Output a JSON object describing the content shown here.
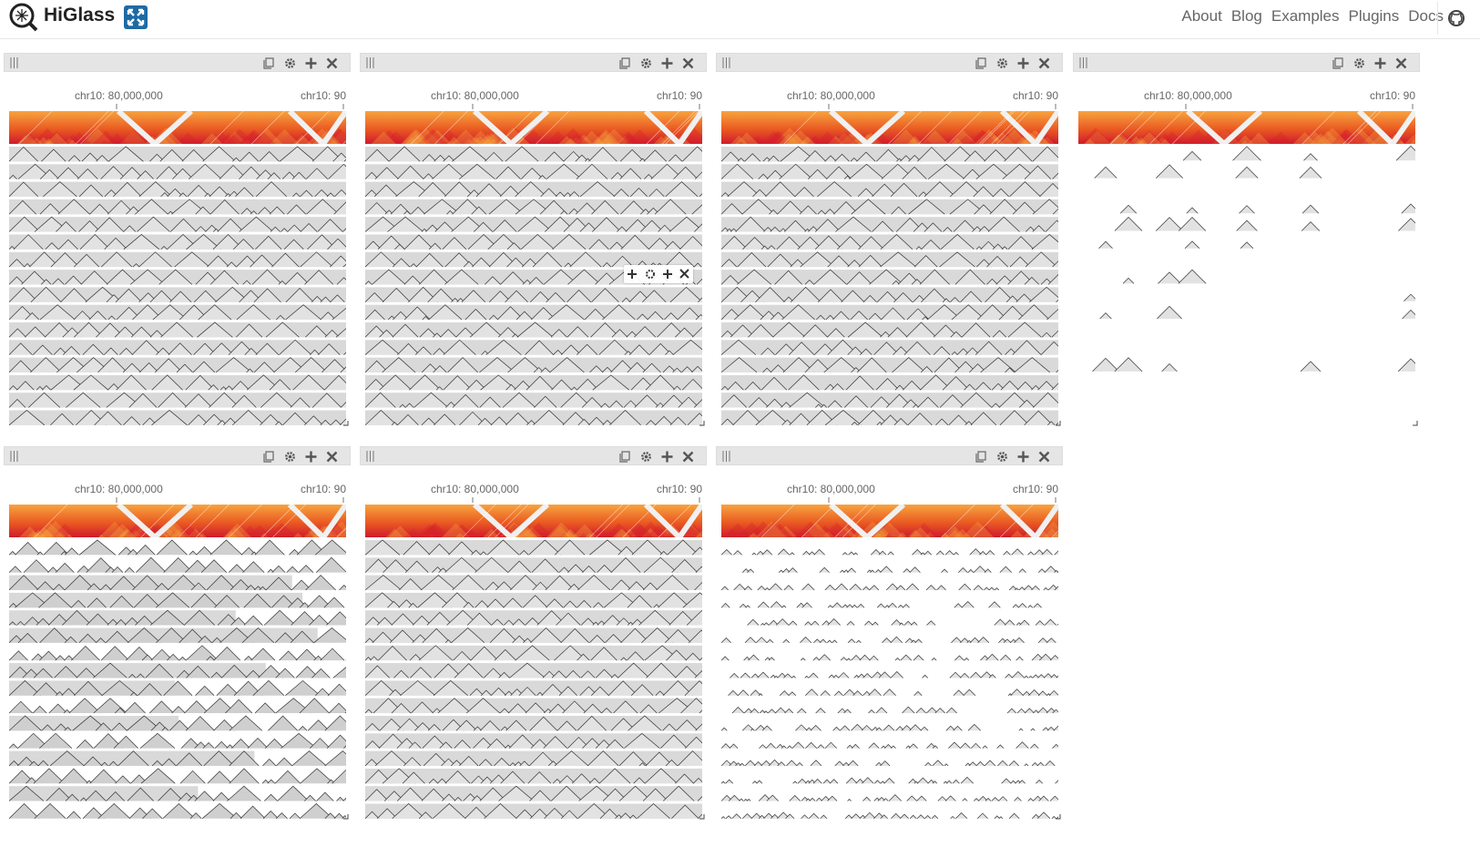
{
  "app": {
    "brand": "HiGlass"
  },
  "nav": {
    "items": [
      {
        "label": "About"
      },
      {
        "label": "Blog"
      },
      {
        "label": "Examples"
      },
      {
        "label": "Plugins"
      },
      {
        "label": "Docs"
      }
    ]
  },
  "icons": {
    "logo": "higlass-logo-icon",
    "expand": "fullscreen-icon",
    "github": "github-icon",
    "drag": "drag-handle-icon",
    "copy": "copy-icon",
    "config": "gear-icon",
    "add": "plus-icon",
    "close": "close-icon"
  },
  "colors": {
    "header": "#e5e5e5",
    "accent": "#1d6aa5",
    "heatHigh": "#cf1b2d",
    "heatLow": "#f7a43f",
    "track": "#d9d9d9"
  },
  "views": [
    {
      "axis_left": "chr10: 80,000,000",
      "axis_right": "chr10: 90"
    },
    {
      "axis_left": "chr10: 80,000,000",
      "axis_right": "chr10: 90"
    },
    {
      "axis_left": "chr10: 80,000,000",
      "axis_right": "chr10: 90"
    },
    {
      "axis_left": "chr10: 80,000,000",
      "axis_right": "chr10: 90"
    },
    {
      "axis_left": "chr10: 80,000,000",
      "axis_right": "chr10: 90"
    },
    {
      "axis_left": "chr10: 80,000,000",
      "axis_right": "chr10: 90"
    },
    {
      "axis_left": "chr10: 80,000,000",
      "axis_right": "chr10: 90"
    }
  ]
}
